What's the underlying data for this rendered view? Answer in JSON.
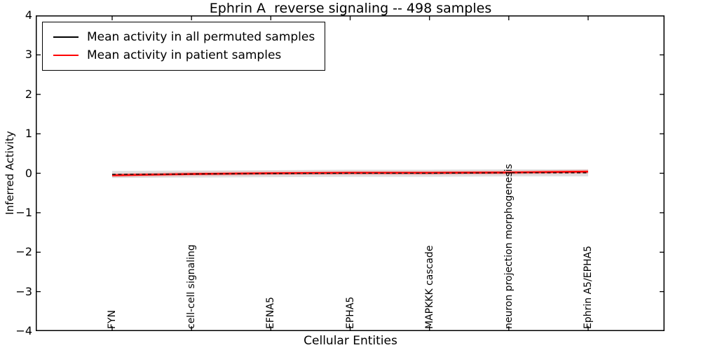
{
  "chart_data": {
    "type": "line",
    "title": "Ephrin A  reverse signaling -- 498 samples",
    "xlabel": "Cellular Entities",
    "ylabel": "Inferred Activity",
    "ylim": [
      -4,
      4
    ],
    "ytick_values": [
      4,
      3,
      2,
      1,
      0,
      -1,
      -2,
      -3,
      -4
    ],
    "ytick_labels": [
      "4",
      "3",
      "2",
      "1",
      "0",
      "−1",
      "−2",
      "−3",
      "−4"
    ],
    "categories": [
      "FYN",
      "cell-cell signaling",
      "EFNA5",
      "EPHA5",
      "MAPKKK cascade",
      "neuron projection morphogenesis",
      "Ephrin A5/EPHA5"
    ],
    "series": [
      {
        "name": "Mean activity in all permuted samples",
        "color": "#000000",
        "line_style": "dashed",
        "values": [
          -0.03,
          -0.02,
          -0.01,
          0.0,
          0.0,
          0.01,
          0.01
        ],
        "band_halfwidth": 0.09,
        "band_color": "#000000",
        "band_opacity": 0.12
      },
      {
        "name": "Mean activity in patient samples",
        "color": "#ff0000",
        "line_style": "solid",
        "values": [
          -0.05,
          -0.02,
          0.0,
          0.01,
          0.01,
          0.02,
          0.04
        ],
        "band_halfwidth": 0.05,
        "band_color": "#ff0000",
        "band_opacity": 0.18
      }
    ],
    "legend_position": "upper left",
    "grid": false,
    "axis_color": "#000000",
    "background": "#ffffff"
  }
}
